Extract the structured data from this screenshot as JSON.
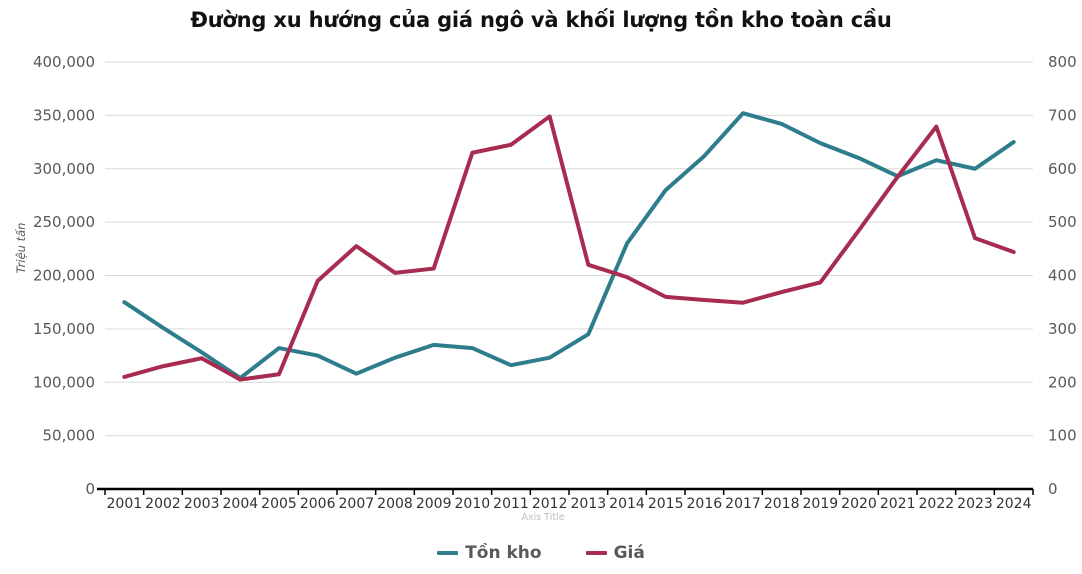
{
  "chart_data": {
    "type": "line",
    "title": "Đường xu hướng của giá ngô và khối lượng tồn kho toàn cầu",
    "x_axis_title": "Axis Title",
    "y_left_axis_title": "Triệu tấn",
    "legend_position": "bottom",
    "grid": "horizontal",
    "categories": [
      "2001",
      "2002",
      "2003",
      "2004",
      "2005",
      "2006",
      "2007",
      "2008",
      "2009",
      "2010",
      "2011",
      "2012",
      "2013",
      "2014",
      "2015",
      "2016",
      "2017",
      "2018",
      "2019",
      "2020",
      "2021",
      "2022",
      "2023",
      "2024"
    ],
    "y_left": {
      "min": 0,
      "max": 400000,
      "step": 50000
    },
    "y_right": {
      "min": 0,
      "max": 800,
      "step": 100
    },
    "y_left_ticks": [
      "0",
      "50,000",
      "100,000",
      "150,000",
      "200,000",
      "250,000",
      "300,000",
      "350,000",
      "400,000"
    ],
    "y_right_ticks": [
      "0",
      "100",
      "200",
      "300",
      "400",
      "500",
      "600",
      "700",
      "800"
    ],
    "series": [
      {
        "name": "Tồn kho",
        "axis": "left",
        "color": "#2E7D8D",
        "values": [
          175000,
          151000,
          128000,
          104000,
          132000,
          125000,
          108000,
          123000,
          135000,
          132000,
          116000,
          123000,
          145000,
          230000,
          280000,
          312000,
          352000,
          342000,
          324000,
          310000,
          293000,
          308000,
          300000,
          325000
        ]
      },
      {
        "name": "Giá",
        "axis": "right",
        "color": "#A72C50",
        "values": [
          210,
          230,
          245,
          205,
          215,
          390,
          455,
          405,
          413,
          630,
          645,
          698,
          420,
          397,
          360,
          354,
          349,
          369,
          387,
          485,
          585,
          679,
          470,
          444
        ]
      }
    ]
  },
  "colors": {
    "grid_line": "#DADADA",
    "axis_line": "#000000",
    "y_tick_label": "#595959",
    "x_tick_label": "#333333",
    "axis_title_muted": "#BFBFBF",
    "legend_text": "#595959",
    "background": "#FFFFFF"
  }
}
